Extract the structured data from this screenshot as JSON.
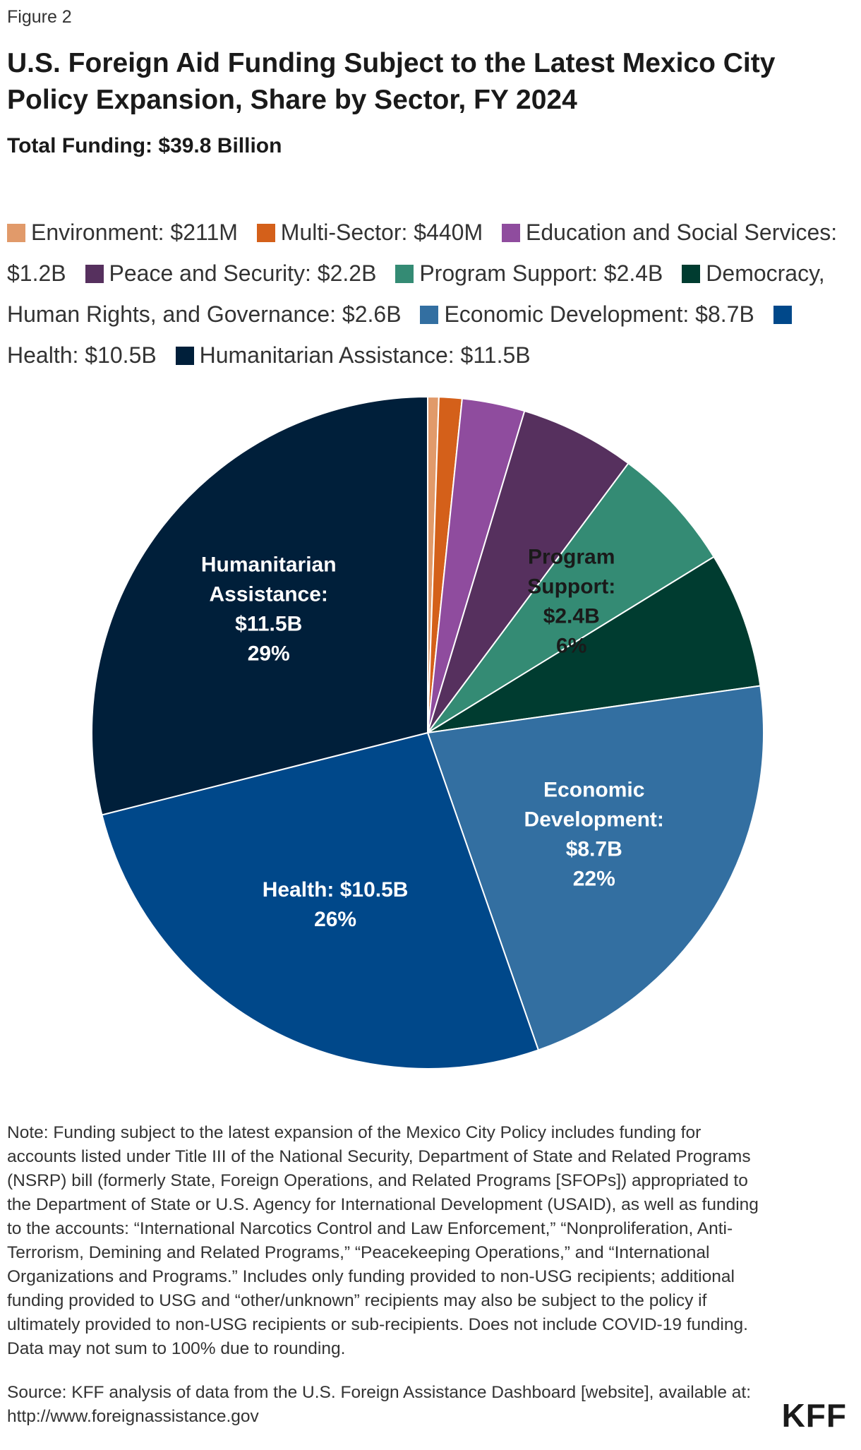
{
  "figure_label": "Figure 2",
  "chart_data": {
    "type": "pie",
    "title": "U.S. Foreign Aid Funding Subject to the Latest Mexico City Policy Expansion, Share by Sector, FY 2024",
    "subtitle": "Total Funding: $39.8 Billion",
    "legend_position": "top",
    "slices": [
      {
        "name": "Environment",
        "value_label": "$211M",
        "value": 0.211,
        "color": "#e19a6a",
        "label_lines": [],
        "text_color": "#ffffff"
      },
      {
        "name": "Multi-Sector",
        "value_label": "$440M",
        "value": 0.44,
        "color": "#d4601a",
        "label_lines": [],
        "text_color": "#ffffff"
      },
      {
        "name": "Education and Social Services",
        "value_label": "$1.2B",
        "value": 1.2,
        "color": "#8f4c9e",
        "label_lines": [],
        "text_color": "#ffffff"
      },
      {
        "name": "Peace and Security",
        "value_label": "$2.2B",
        "value": 2.2,
        "color": "#56305e",
        "label_lines": [],
        "text_color": "#ffffff"
      },
      {
        "name": "Program Support",
        "value_label": "$2.4B",
        "value": 2.4,
        "color": "#348b74",
        "label_lines": [
          "Program",
          "Support:",
          "$2.4B",
          "6%"
        ],
        "text_color": "#1a1a1a"
      },
      {
        "name": "Democracy, Human Rights, and Governance",
        "value_label": "$2.6B",
        "value": 2.6,
        "color": "#003c30",
        "label_lines": [],
        "text_color": "#ffffff"
      },
      {
        "name": "Economic Development",
        "value_label": "$8.7B",
        "value": 8.7,
        "color": "#336fa1",
        "label_lines": [
          "Economic",
          "Development:",
          "$8.7B",
          "22%"
        ],
        "text_color": "#ffffff"
      },
      {
        "name": "Health",
        "value_label": "$10.5B",
        "value": 10.5,
        "color": "#00488a",
        "label_lines": [
          "Health: $10.5B",
          "26%"
        ],
        "text_color": "#ffffff"
      },
      {
        "name": "Humanitarian Assistance",
        "value_label": "$11.5B",
        "value": 11.5,
        "color": "#001f3a",
        "label_lines": [
          "Humanitarian",
          "Assistance:",
          "$11.5B",
          "29%"
        ],
        "text_color": "#ffffff"
      }
    ]
  },
  "note": "Note: Funding subject to the latest expansion of the Mexico City Policy includes funding for accounts listed under Title III of the National Security, Department of State and Related Programs (NSRP) bill (formerly State, Foreign Operations, and Related Programs [SFOPs]) appropriated to the Department of State or U.S. Agency for International Development (USAID), as well as funding to the accounts: “International Narcotics Control and Law Enforcement,” “Nonproliferation, Anti-Terrorism, Demining and Related Programs,” “Peacekeeping Operations,” and “International Organizations and Programs.” Includes only funding provided to non-USG recipients; additional funding provided to USG and “other/unknown” recipients may also be subject to the policy if ultimately provided to non-USG recipients or sub-recipients. Does not include COVID-19 funding. Data may not sum to 100% due to rounding.",
  "source": "Source: KFF analysis of data from the U.S. Foreign Assistance Dashboard [website], available at: http://www.foreignassistance.gov",
  "logo": "KFF"
}
